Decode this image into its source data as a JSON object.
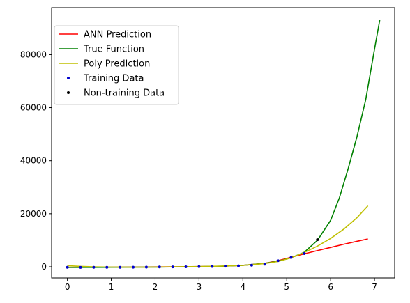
{
  "chart_data": {
    "type": "line",
    "title": "",
    "xlabel": "",
    "ylabel": "",
    "xlim": [
      -0.36,
      7.46
    ],
    "ylim": [
      -4200,
      97700
    ],
    "xticks": [
      0,
      1,
      2,
      3,
      4,
      5,
      6,
      7
    ],
    "yticks": [
      0,
      20000,
      40000,
      60000,
      80000
    ],
    "ytick_labels": [
      "0",
      "20000",
      "40000",
      "60000",
      "80000"
    ],
    "grid": false,
    "legend_position": "top-left",
    "series": [
      {
        "name": "ANN Prediction",
        "kind": "line",
        "color": "#ff0000",
        "x": [
          0,
          0.5,
          1,
          1.5,
          2,
          2.5,
          3,
          3.5,
          4,
          4.5,
          4.8,
          5.1,
          5.4,
          5.7,
          6.0,
          6.3,
          6.6,
          6.85
        ],
        "y": [
          -200,
          -180,
          -150,
          -100,
          -50,
          0,
          80,
          200,
          550,
          1300,
          2300,
          3600,
          4900,
          6100,
          7300,
          8500,
          9600,
          10500
        ]
      },
      {
        "name": "True Function",
        "kind": "line",
        "color": "#008000",
        "x": [
          0,
          0.5,
          1,
          1.5,
          2,
          2.5,
          3,
          3.5,
          4,
          4.5,
          4.8,
          5.1,
          5.4,
          5.7,
          6.0,
          6.2,
          6.4,
          6.6,
          6.8,
          7.0,
          7.12
        ],
        "y": [
          -200,
          -200,
          -180,
          -150,
          -100,
          -30,
          60,
          220,
          550,
          1300,
          2100,
          3400,
          5500,
          10000,
          17500,
          26000,
          37000,
          49000,
          63000,
          82000,
          93000
        ]
      },
      {
        "name": "Poly Prediction",
        "kind": "line",
        "color": "#bfbf00",
        "x": [
          0,
          0.3,
          0.6,
          1,
          1.5,
          2,
          2.5,
          3,
          3.5,
          4,
          4.5,
          4.8,
          5.1,
          5.4,
          5.7,
          6.0,
          6.3,
          6.6,
          6.85
        ],
        "y": [
          400,
          150,
          0,
          -100,
          -150,
          -100,
          0,
          100,
          250,
          550,
          1200,
          2000,
          3400,
          5400,
          7800,
          10700,
          14200,
          18500,
          23000
        ]
      },
      {
        "name": "Training Data",
        "kind": "scatter",
        "color": "#0000cc",
        "x": [
          0,
          0.3,
          0.6,
          0.9,
          1.2,
          1.5,
          1.8,
          2.1,
          2.4,
          2.7,
          3.0,
          3.3,
          3.6,
          3.9,
          4.2,
          4.5,
          4.8,
          5.1,
          5.4
        ],
        "y": [
          -200,
          -220,
          -210,
          -200,
          -180,
          -150,
          -120,
          -80,
          -40,
          0,
          60,
          130,
          220,
          350,
          600,
          1000,
          2300,
          3500,
          5000
        ]
      },
      {
        "name": "Non-training Data",
        "kind": "scatter",
        "color": "#000000",
        "x": [
          5.7
        ],
        "y": [
          10200
        ]
      }
    ]
  }
}
